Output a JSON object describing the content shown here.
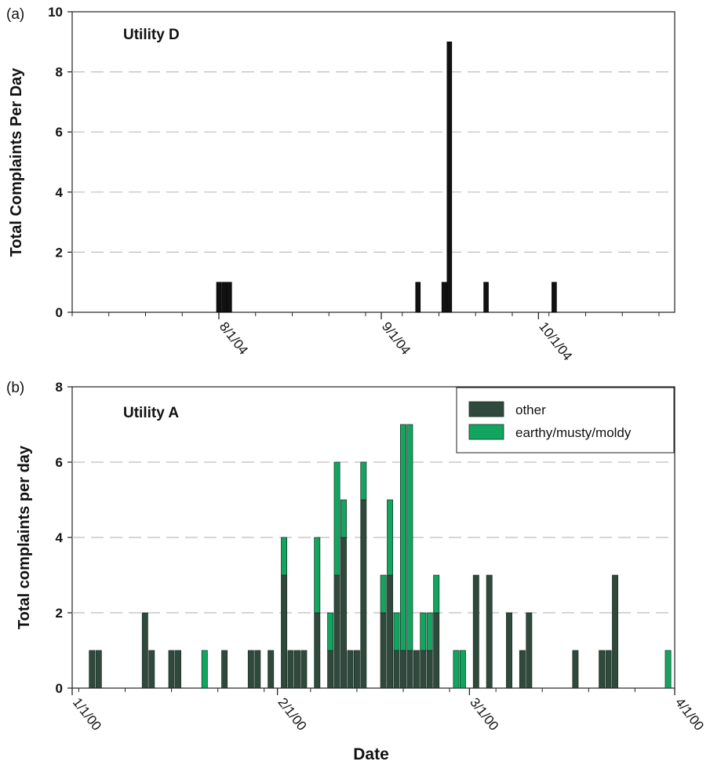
{
  "chart_data": [
    {
      "panel": "(a)",
      "type": "bar",
      "title": "Utility D",
      "xlabel": "",
      "ylabel": "Total Complaints Per Day",
      "ylim": [
        0,
        10
      ],
      "yticks": [
        0,
        2,
        4,
        6,
        8,
        10
      ],
      "xlim": [
        "2004-07-04",
        "2004-10-27"
      ],
      "xtick_labels": [
        {
          "date": "2004-08-01",
          "label": "8/1/04"
        },
        {
          "date": "2004-09-01",
          "label": "9/1/04"
        },
        {
          "date": "2004-10-01",
          "label": "10/1/04"
        }
      ],
      "grid": "horizontal dashed",
      "bar_color": "#111111",
      "points": [
        {
          "date": "2004-08-01",
          "value": 1
        },
        {
          "date": "2004-08-02",
          "value": 1
        },
        {
          "date": "2004-08-03",
          "value": 1
        },
        {
          "date": "2004-09-08",
          "value": 1
        },
        {
          "date": "2004-09-13",
          "value": 1
        },
        {
          "date": "2004-09-14",
          "value": 9
        },
        {
          "date": "2004-09-21",
          "value": 1
        },
        {
          "date": "2004-10-04",
          "value": 1
        }
      ]
    },
    {
      "panel": "(b)",
      "type": "bar",
      "stacked": true,
      "title": "Utility A",
      "xlabel": "Date",
      "ylabel": "Total complaints per day",
      "ylim": [
        0,
        8
      ],
      "yticks": [
        0,
        2,
        4,
        6,
        8
      ],
      "xlim": [
        "2000-01-01",
        "2000-04-01"
      ],
      "xtick_labels": [
        {
          "date": "2000-01-01",
          "label": "1/1/00"
        },
        {
          "date": "2000-02-01",
          "label": "2/1/00"
        },
        {
          "date": "2000-03-01",
          "label": "3/1/00"
        },
        {
          "date": "2000-04-01",
          "label": "4/1/00"
        }
      ],
      "grid": "horizontal dashed",
      "legend_position": "top-right",
      "series": [
        {
          "name": "other",
          "color": "#2f4a3c",
          "points": [
            {
              "date": "2000-01-04",
              "value": 1
            },
            {
              "date": "2000-01-05",
              "value": 1
            },
            {
              "date": "2000-01-12",
              "value": 2
            },
            {
              "date": "2000-01-13",
              "value": 1
            },
            {
              "date": "2000-01-16",
              "value": 1
            },
            {
              "date": "2000-01-17",
              "value": 1
            },
            {
              "date": "2000-01-24",
              "value": 1
            },
            {
              "date": "2000-01-28",
              "value": 1
            },
            {
              "date": "2000-01-29",
              "value": 1
            },
            {
              "date": "2000-01-31",
              "value": 1
            },
            {
              "date": "2000-02-02",
              "value": 3
            },
            {
              "date": "2000-02-03",
              "value": 1
            },
            {
              "date": "2000-02-04",
              "value": 1
            },
            {
              "date": "2000-02-05",
              "value": 1
            },
            {
              "date": "2000-02-07",
              "value": 2
            },
            {
              "date": "2000-02-09",
              "value": 1
            },
            {
              "date": "2000-02-10",
              "value": 3
            },
            {
              "date": "2000-02-11",
              "value": 4
            },
            {
              "date": "2000-02-12",
              "value": 1
            },
            {
              "date": "2000-02-13",
              "value": 1
            },
            {
              "date": "2000-02-14",
              "value": 5
            },
            {
              "date": "2000-02-17",
              "value": 2
            },
            {
              "date": "2000-02-18",
              "value": 3
            },
            {
              "date": "2000-02-19",
              "value": 1
            },
            {
              "date": "2000-02-20",
              "value": 1
            },
            {
              "date": "2000-02-21",
              "value": 1
            },
            {
              "date": "2000-02-22",
              "value": 1
            },
            {
              "date": "2000-02-23",
              "value": 1
            },
            {
              "date": "2000-02-24",
              "value": 1
            },
            {
              "date": "2000-02-25",
              "value": 2
            },
            {
              "date": "2000-03-02",
              "value": 3
            },
            {
              "date": "2000-03-04",
              "value": 3
            },
            {
              "date": "2000-03-07",
              "value": 2
            },
            {
              "date": "2000-03-09",
              "value": 1
            },
            {
              "date": "2000-03-10",
              "value": 2
            },
            {
              "date": "2000-03-17",
              "value": 1
            },
            {
              "date": "2000-03-21",
              "value": 1
            },
            {
              "date": "2000-03-22",
              "value": 1
            },
            {
              "date": "2000-03-23",
              "value": 3
            }
          ]
        },
        {
          "name": "earthy/musty/moldy",
          "color": "#12a560",
          "points": [
            {
              "date": "2000-01-21",
              "value": 1
            },
            {
              "date": "2000-02-02",
              "value": 1
            },
            {
              "date": "2000-02-07",
              "value": 2
            },
            {
              "date": "2000-02-09",
              "value": 1
            },
            {
              "date": "2000-02-10",
              "value": 3
            },
            {
              "date": "2000-02-11",
              "value": 1
            },
            {
              "date": "2000-02-14",
              "value": 1
            },
            {
              "date": "2000-02-17",
              "value": 1
            },
            {
              "date": "2000-02-18",
              "value": 2
            },
            {
              "date": "2000-02-19",
              "value": 1
            },
            {
              "date": "2000-02-20",
              "value": 6
            },
            {
              "date": "2000-02-21",
              "value": 6
            },
            {
              "date": "2000-02-23",
              "value": 1
            },
            {
              "date": "2000-02-24",
              "value": 1
            },
            {
              "date": "2000-02-25",
              "value": 1
            },
            {
              "date": "2000-02-28",
              "value": 1
            },
            {
              "date": "2000-02-29",
              "value": 1
            },
            {
              "date": "2000-03-31",
              "value": 1
            }
          ]
        }
      ]
    }
  ]
}
